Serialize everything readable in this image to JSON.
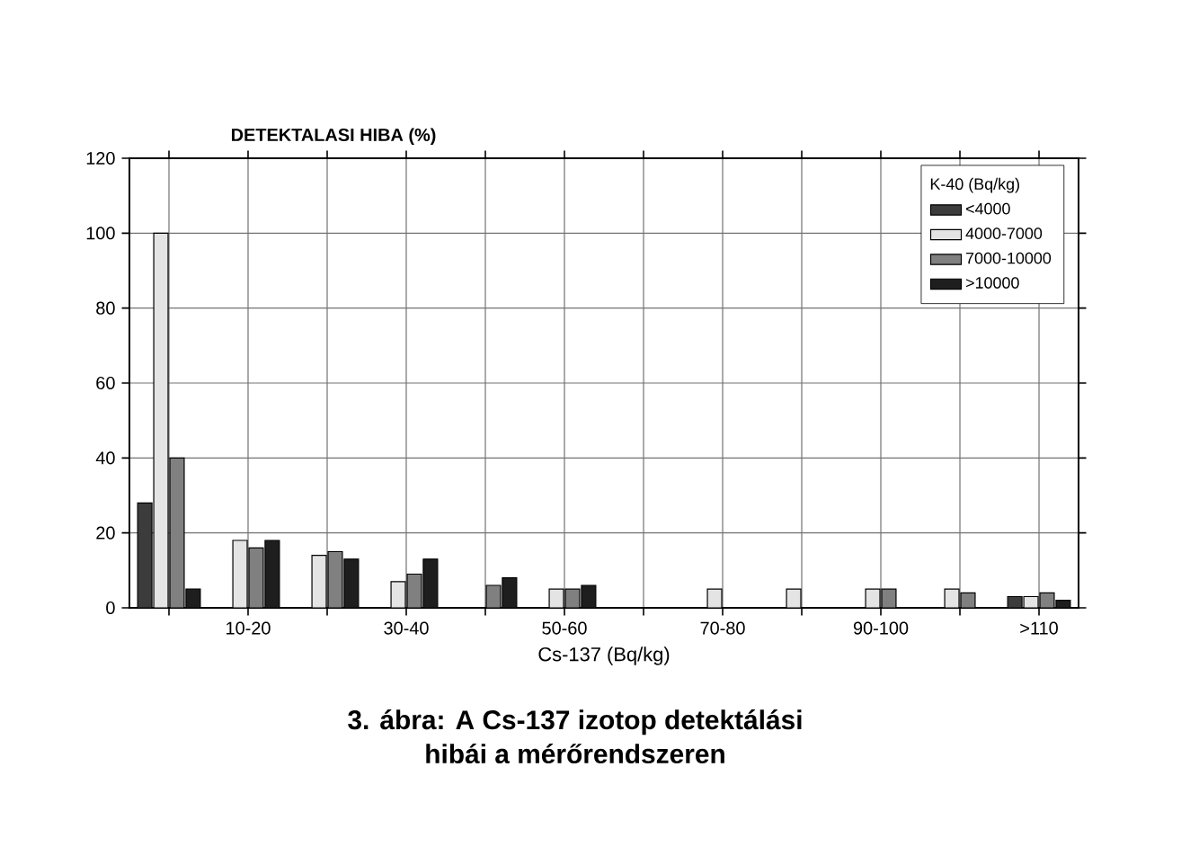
{
  "chart_data": {
    "type": "bar",
    "ylabel": "DETEKTALASI HIBA (%)",
    "xlabel": "Cs-137 (Bq/kg)",
    "legend_title": "K-40 (Bq/kg)",
    "annotations": [
      "3. ábra: A Cs-137 izotop detektálási hibái a mérőrendszeren"
    ],
    "categories": [
      null,
      "10-20",
      null,
      "30-40",
      null,
      "50-60",
      null,
      "70-80",
      null,
      "90-100",
      null,
      ">110"
    ],
    "series": [
      {
        "name": "<4000",
        "color": "#3c3c3c",
        "values": [
          28,
          null,
          null,
          null,
          null,
          null,
          null,
          null,
          null,
          null,
          null,
          3
        ]
      },
      {
        "name": "4000-7000",
        "color": "#e4e4e4",
        "values": [
          100,
          18,
          14,
          7,
          null,
          5,
          null,
          5,
          5,
          5,
          5,
          3
        ]
      },
      {
        "name": "7000-10000",
        "color": "#808080",
        "values": [
          40,
          16,
          15,
          9,
          6,
          5,
          null,
          null,
          null,
          5,
          4,
          4
        ]
      },
      {
        "name": ">10000",
        "color": "#1e1e1e",
        "values": [
          5,
          18,
          13,
          13,
          8,
          6,
          null,
          null,
          null,
          null,
          null,
          2
        ]
      }
    ],
    "ylim": [
      0,
      120
    ],
    "yticks": [
      0,
      20,
      40,
      60,
      80,
      100,
      120
    ],
    "grid": true,
    "legend": "top right"
  }
}
